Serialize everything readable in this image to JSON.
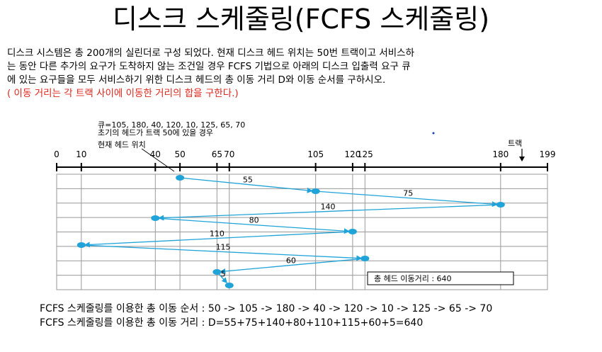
{
  "title": "디스크 스케줄링(FCFS 스케줄링)",
  "problem": {
    "lines": [
      "디스크 시스템은 총 200개의 실린더로 구성 되었다.  현재 디스크 헤드 위치는  50번 트랙이고  서비스하",
      "는 동안 다른 추가의 요구가 도착하지 않는 조건일 경우 FCFS 기법으로 아래의 디스크 입출력 요구 큐",
      "에 있는 요구들을 모두 서비스하기 위한  디스크 헤드의 총 이동 거리 D와 이동 순서를 구하시오."
    ],
    "note": " ( 이동 거리는 각 트랙 사이에 이동한 거리의 합을 구한다.)"
  },
  "figure": {
    "queue_label": "큐=105, 180, 40, 120, 10, 125, 65, 70",
    "initial_label": "초기의 헤드가 트랙 50에 있을 경우",
    "current_head_label": "현재 헤드 위치",
    "track_label": "트랙",
    "ticks": [
      0,
      10,
      40,
      50,
      65,
      70,
      105,
      120,
      125,
      180,
      199
    ],
    "sequence": [
      50,
      105,
      180,
      40,
      120,
      10,
      125,
      65,
      70
    ],
    "distances": [
      "55",
      "75",
      "140",
      "80",
      "110",
      "115",
      "60",
      "5"
    ],
    "total_label": "총 헤드 이동거리 : 640",
    "colors": {
      "path": "#1fa3d9",
      "grid": "#999999",
      "axis": "#000000"
    }
  },
  "footer": {
    "order_line": "FCFS 스케줄링를 이용한 총 이동 순서  : 50 -> 105 -> 180 -> 40 -> 120 -> 10 -> 125 -> 65 -> 70",
    "distance_line": "FCFS 스케줄링를 이용한 총 이동 거리  : D=55+75+140+80+110+115+60+5=640"
  }
}
